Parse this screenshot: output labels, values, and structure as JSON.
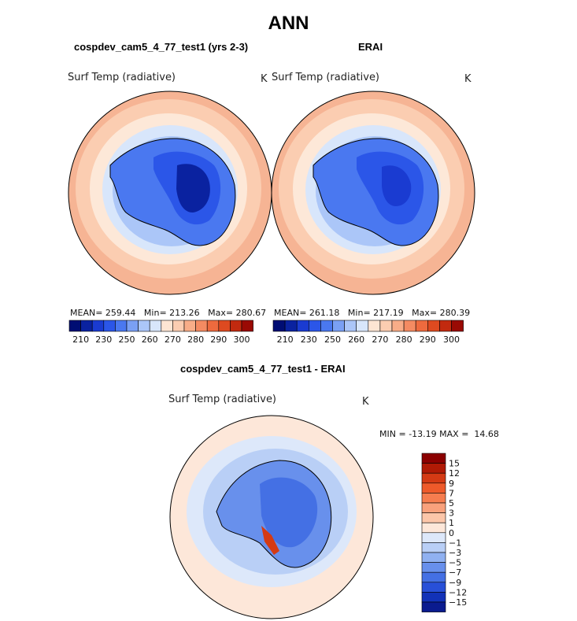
{
  "figure": {
    "title": "ANN",
    "panels": [
      {
        "title": "cospdev_cam5_4_77_test1 (yrs 2-3)",
        "variable": "Surf Temp (radiative)",
        "units": "K",
        "stats": {
          "mean_label": "MEAN=",
          "mean": "259.44",
          "min_label": "Min=",
          "min": "213.26",
          "max_label": "Max=",
          "max": "280.67"
        }
      },
      {
        "title": "ERAI",
        "variable": "Surf Temp (radiative)",
        "units": "K",
        "stats": {
          "mean_label": "MEAN=",
          "mean": "261.18",
          "min_label": "Min=",
          "min": "217.19",
          "max_label": "Max=",
          "max": "280.39"
        }
      },
      {
        "title": "cospdev_cam5_4_77_test1 - ERAI",
        "variable": "Surf Temp (radiative)",
        "units": "K",
        "stats": {
          "min_label": "MIN =",
          "min": "-13.19",
          "max_label": "MAX =",
          "max": "14.68"
        }
      }
    ]
  },
  "chart_data": [
    {
      "type": "heatmap",
      "projection": "south-polar-stereographic",
      "title": "cospdev_cam5_4_77_test1 (yrs 2-3)",
      "variable": "Surf Temp (radiative)",
      "units": "K",
      "mean": 259.44,
      "min": 213.26,
      "max": 280.67,
      "colorbar": {
        "orientation": "horizontal",
        "colors": [
          "#000d73",
          "#0a22a0",
          "#1a3bd1",
          "#2b56e8",
          "#4a78f0",
          "#7aa0f4",
          "#abc6f8",
          "#d8e6fb",
          "#fde5d3",
          "#fbcdb1",
          "#f8ad88",
          "#f48b62",
          "#ee6a3e",
          "#de4a20",
          "#c22a0f",
          "#9a0a04"
        ],
        "ticks": [
          "210",
          "230",
          "250",
          "260",
          "270",
          "280",
          "290",
          "300"
        ]
      }
    },
    {
      "type": "heatmap",
      "projection": "south-polar-stereographic",
      "title": "ERAI",
      "variable": "Surf Temp (radiative)",
      "units": "K",
      "mean": 261.18,
      "min": 217.19,
      "max": 280.39,
      "colorbar": {
        "orientation": "horizontal",
        "colors": [
          "#000d73",
          "#0a22a0",
          "#1a3bd1",
          "#2b56e8",
          "#4a78f0",
          "#7aa0f4",
          "#abc6f8",
          "#d8e6fb",
          "#fde5d3",
          "#fbcdb1",
          "#f8ad88",
          "#f48b62",
          "#ee6a3e",
          "#de4a20",
          "#c22a0f",
          "#9a0a04"
        ],
        "ticks": [
          "210",
          "230",
          "250",
          "260",
          "270",
          "280",
          "290",
          "300"
        ]
      }
    },
    {
      "type": "heatmap",
      "projection": "south-polar-stereographic",
      "title": "cospdev_cam5_4_77_test1 - ERAI",
      "variable": "Surf Temp (radiative)",
      "units": "K",
      "min": -13.19,
      "max": 14.68,
      "colorbar": {
        "orientation": "vertical",
        "colors": [
          "#8b0000",
          "#b01a05",
          "#d43a14",
          "#ee5a2a",
          "#f67d4f",
          "#f9a17c",
          "#fcc6a9",
          "#fde7d9",
          "#dde8fa",
          "#b9cff6",
          "#90b1f1",
          "#6890ec",
          "#4470e4",
          "#2850d8",
          "#1232b8",
          "#0a1b8f"
        ],
        "ticks": [
          "15",
          "12",
          "9",
          "7",
          "5",
          "3",
          "1",
          "0",
          "−1",
          "−3",
          "−5",
          "−7",
          "−9",
          "−12",
          "−15"
        ]
      }
    }
  ]
}
